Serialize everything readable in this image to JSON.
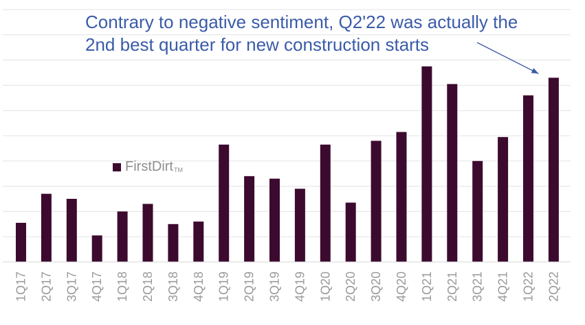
{
  "chart_data": {
    "type": "bar",
    "categories": [
      "1Q17",
      "2Q17",
      "3Q17",
      "4Q17",
      "1Q18",
      "2Q18",
      "3Q18",
      "4Q18",
      "1Q19",
      "2Q19",
      "3Q19",
      "4Q19",
      "1Q20",
      "2Q20",
      "3Q20",
      "4Q20",
      "1Q21",
      "2Q21",
      "3Q21",
      "4Q21",
      "1Q22",
      "2Q22"
    ],
    "series": [
      {
        "name": "FirstDirt",
        "name_suffix": "TM",
        "color": "#3d0a2f",
        "values": [
          1.55,
          2.7,
          2.5,
          1.05,
          2.0,
          2.3,
          1.5,
          1.6,
          4.65,
          3.4,
          3.3,
          2.9,
          4.65,
          2.35,
          4.8,
          5.15,
          7.75,
          7.05,
          4.0,
          4.95,
          6.6,
          7.3
        ]
      }
    ],
    "ylim": [
      0,
      10
    ],
    "ytick_step": 1,
    "grid": true,
    "yticks_shown": false,
    "annotation": {
      "lines": [
        "Contrary to negative sentiment, Q2'22 was actually the",
        "2nd best quarter for new construction starts"
      ],
      "color": "#3a5ba8",
      "arrow_target": "2Q22"
    },
    "legend_position": "middle-left"
  }
}
